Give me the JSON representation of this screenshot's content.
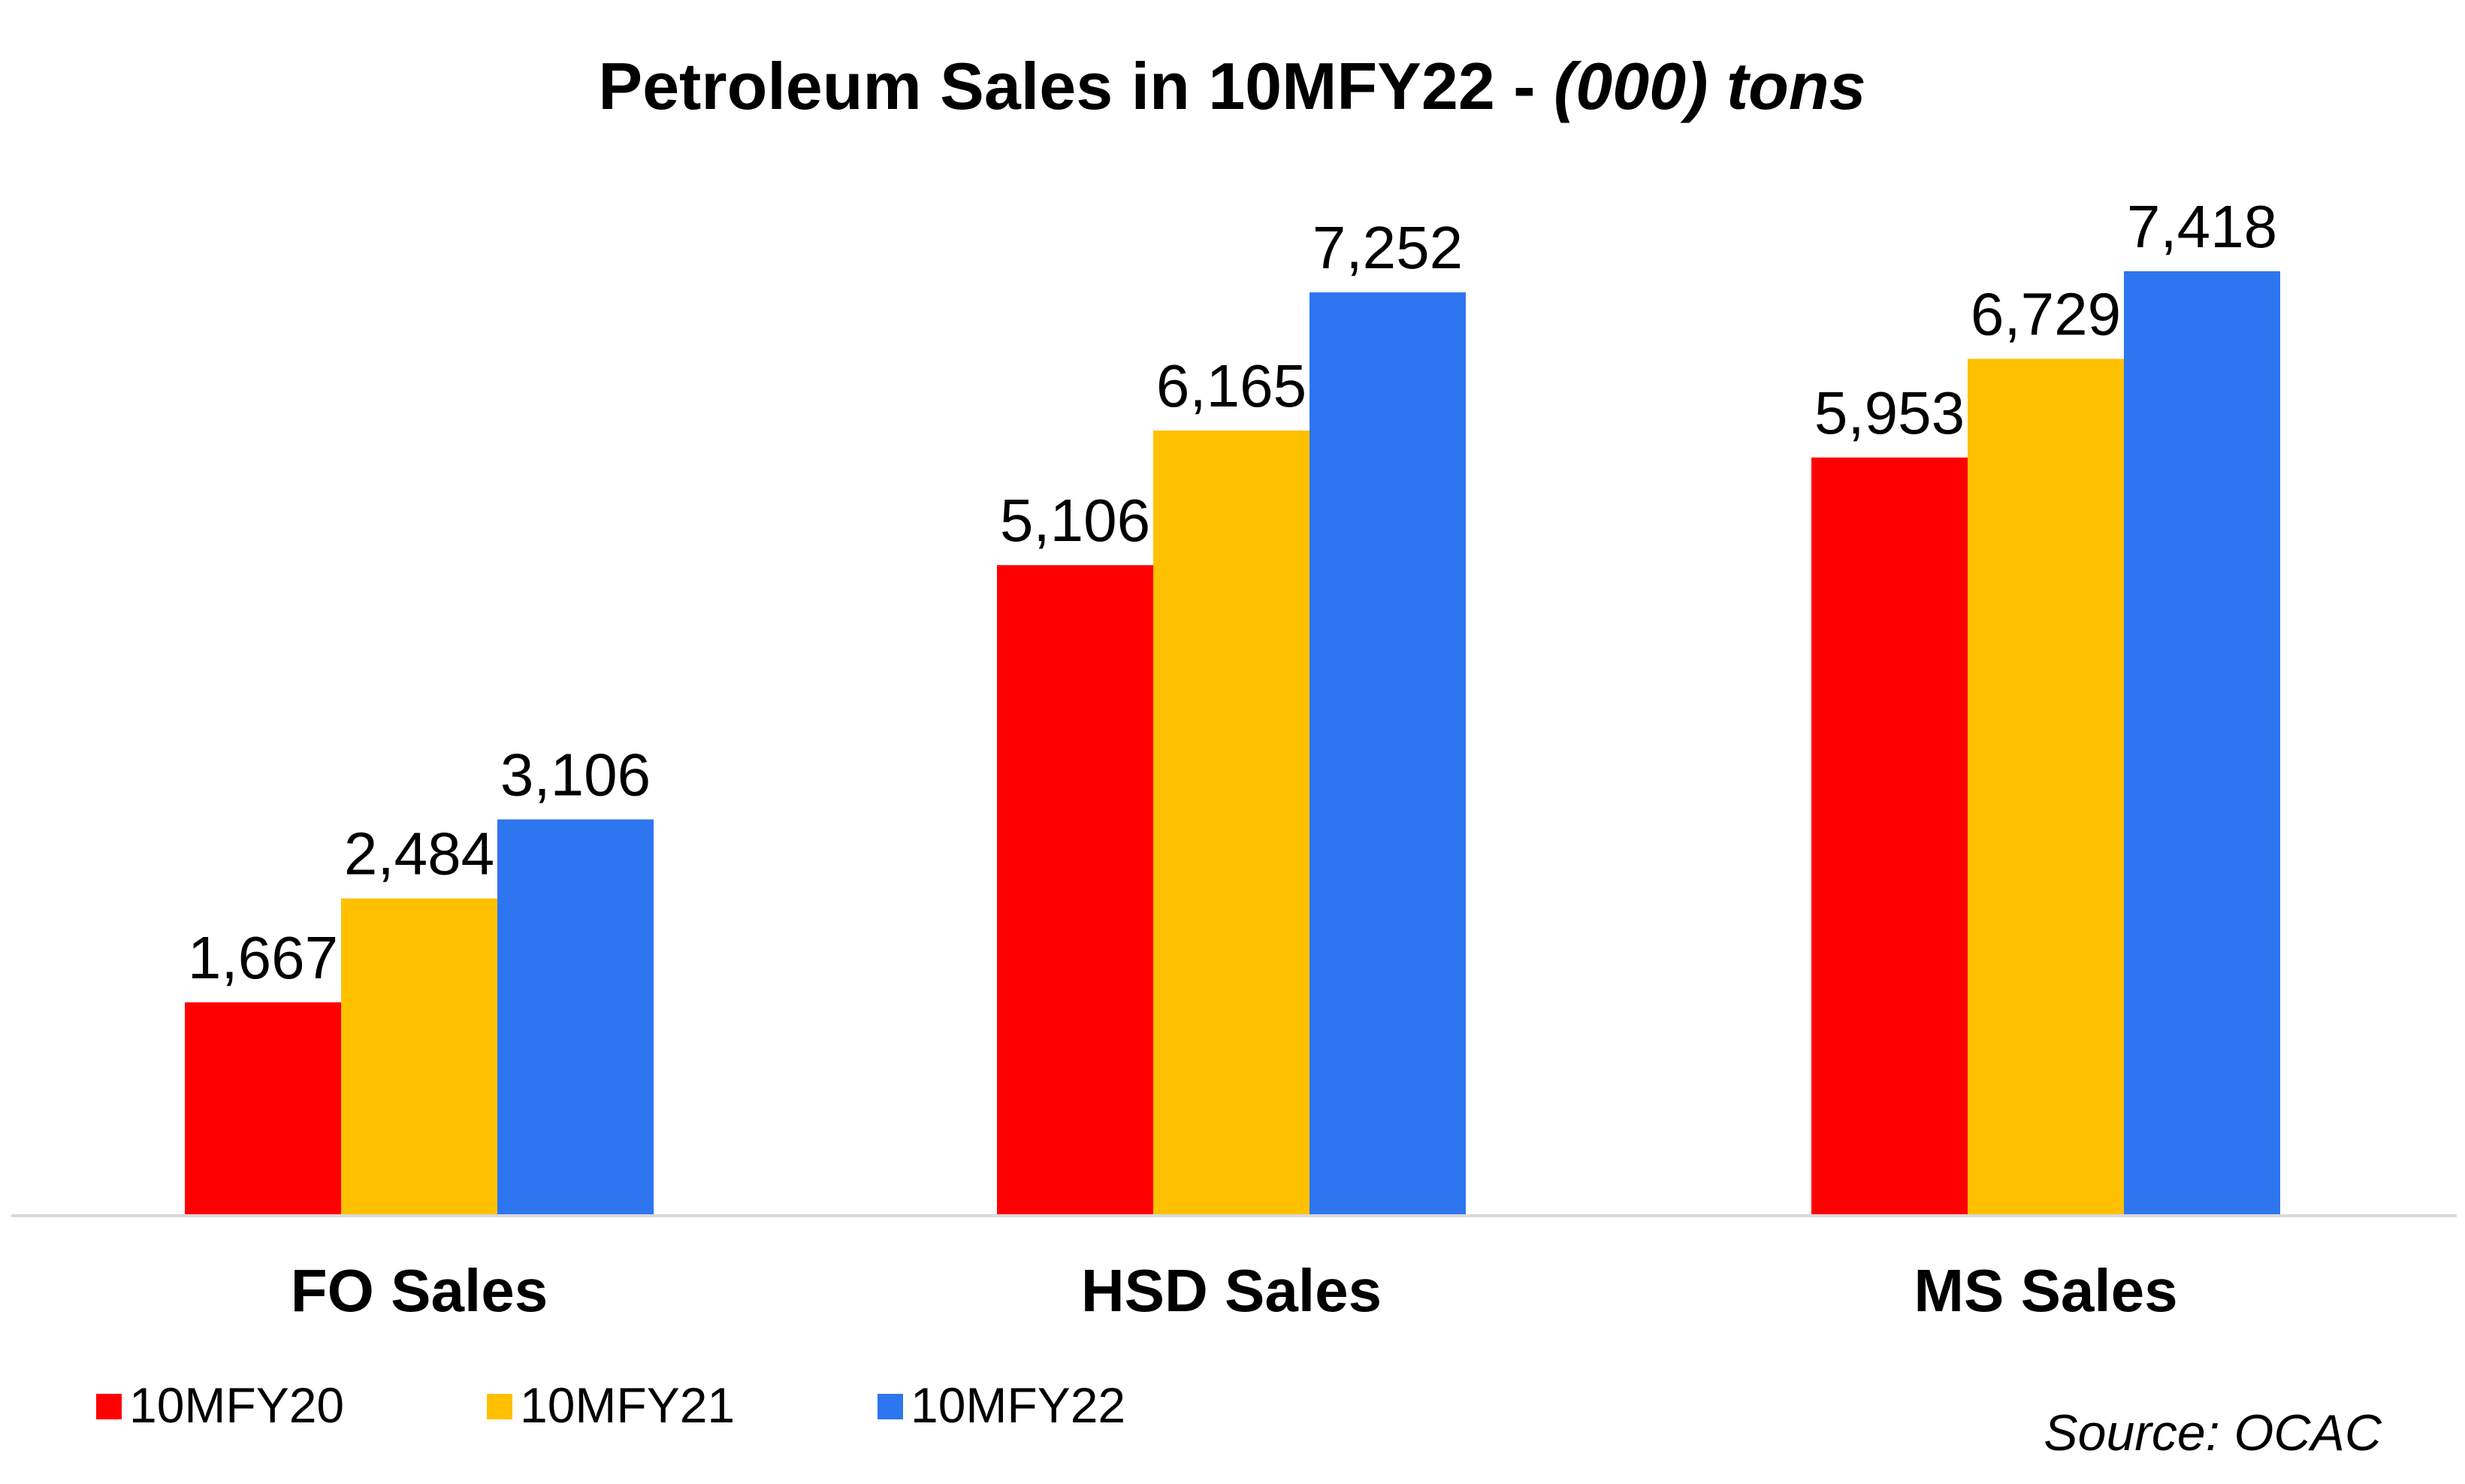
{
  "chart_data": {
    "type": "bar",
    "title_main": "Petroleum Sales in 10MFY22 -",
    "title_unit": "(000) tons",
    "categories": [
      "FO Sales",
      "HSD Sales",
      "MS Sales"
    ],
    "series": [
      {
        "name": "10MFY20",
        "color": "#FF0000",
        "values": [
          1667,
          5106,
          5953
        ],
        "labels": [
          "1,667",
          "5,106",
          "5,953"
        ]
      },
      {
        "name": "10MFY21",
        "color": "#FFC000",
        "values": [
          2484,
          6165,
          6729
        ],
        "labels": [
          "2,484",
          "6,165",
          "6,729"
        ]
      },
      {
        "name": "10MFY22",
        "color": "#2E75F0",
        "values": [
          3106,
          7252,
          7418
        ],
        "labels": [
          "3,106",
          "7,252",
          "7,418"
        ]
      }
    ],
    "ylim": [
      0,
      8000
    ],
    "grid": false,
    "legend_position": "bottom-left",
    "source": "Source: OCAC"
  }
}
